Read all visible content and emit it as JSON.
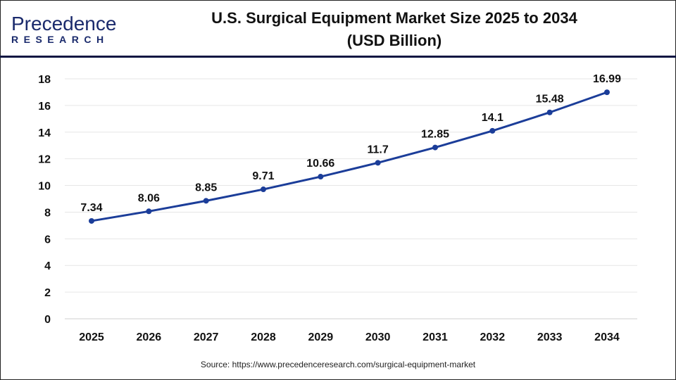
{
  "logo": {
    "line1": "Precedence",
    "line2": "RESEARCH"
  },
  "title": "U.S. Surgical Equipment Market Size 2025 to 2034",
  "subtitle": "(USD Billion)",
  "source": "Source: https://www.precedenceresearch.com/surgical-equipment-market",
  "chart_data": {
    "type": "line",
    "title": "U.S. Surgical Equipment Market Size 2025 to 2034 (USD Billion)",
    "categories": [
      "2025",
      "2026",
      "2027",
      "2028",
      "2029",
      "2030",
      "2031",
      "2032",
      "2033",
      "2034"
    ],
    "values": [
      7.34,
      8.06,
      8.85,
      9.71,
      10.66,
      11.7,
      12.85,
      14.1,
      15.48,
      16.99
    ],
    "data_labels": [
      "7.34",
      "8.06",
      "8.85",
      "9.71",
      "10.66",
      "11.7",
      "12.85",
      "14.1",
      "15.48",
      "16.99"
    ],
    "yticks": [
      0,
      2,
      4,
      6,
      8,
      10,
      12,
      14,
      16,
      18
    ],
    "ylim": [
      0,
      18
    ],
    "grid": true,
    "line_color": "#1b3d99"
  }
}
